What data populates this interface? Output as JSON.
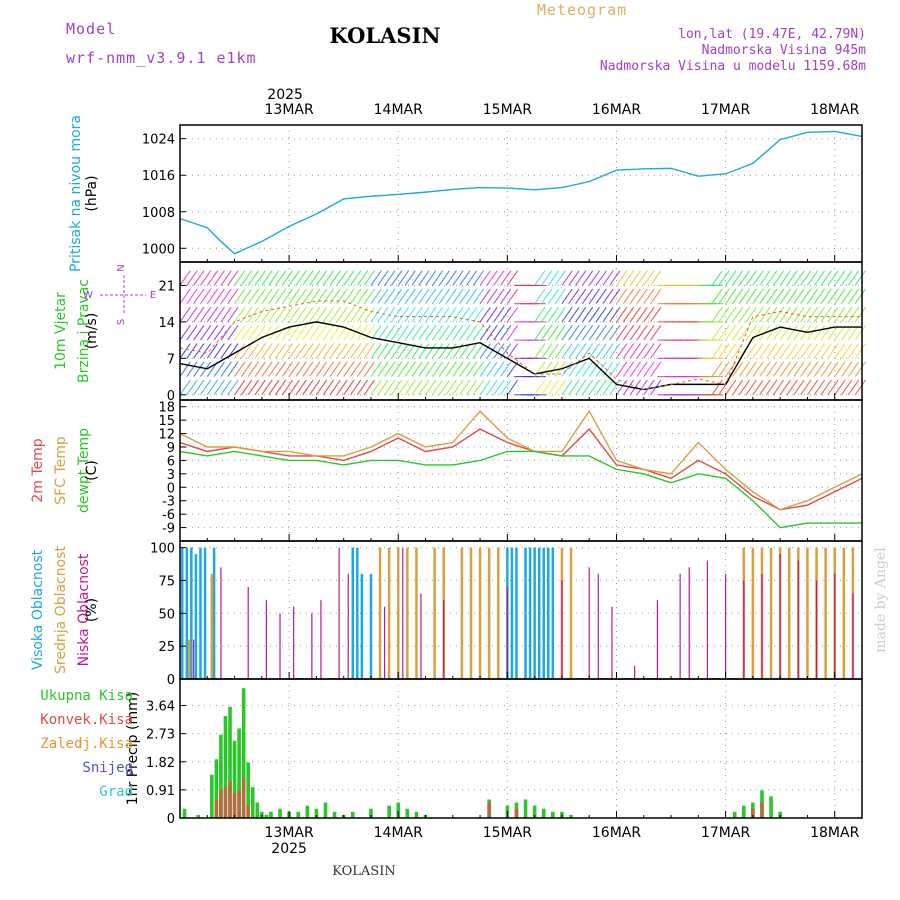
{
  "header": {
    "model_label": "Model",
    "model_name": "wrf-nmm_v3.9.1 e1km",
    "station": "KOLASIN",
    "product": "Meteogram",
    "coords": "lon,lat (19.47E, 42.79N)",
    "elevation": "Nadmorska Visina 945m",
    "model_elevation": "Nadmorska Visina u modelu 1159.68m",
    "footer_station": "KOLASIN",
    "credit": "made by Angel"
  },
  "colors": {
    "pressure": "#1ba8e8",
    "temp2m": "#e84848",
    "sfc": "#d8a040",
    "dewpt": "#28c828",
    "high_cloud": "#1ba8e8",
    "mid_cloud": "#d8a040",
    "low_cloud": "#c01890",
    "precip": "#28c828",
    "precip_conv": "#b86a40"
  },
  "chart_data": [
    {
      "type": "line",
      "panel": "pressure",
      "ylabel_lines": [
        "Pritisak na nivou mora",
        "(hPa)"
      ],
      "yticks": [
        "1000",
        "1008",
        "1016",
        "1024"
      ],
      "ylim": [
        997,
        1027
      ],
      "x_dates": [
        "13MAR",
        "14MAR",
        "15MAR",
        "16MAR",
        "17MAR",
        "18MAR"
      ],
      "year": "2025",
      "x_hours": [
        -12,
        -6,
        -3,
        0,
        6,
        12,
        18,
        24,
        30,
        36,
        42,
        48,
        54,
        60,
        66,
        72,
        78,
        84,
        90,
        96,
        102,
        108,
        114,
        120,
        126,
        132,
        138
      ],
      "series": [
        {
          "name": "",
          "values": [
            1006.5,
            1004.5,
            1001.5,
            998.8,
            1001.5,
            1004.8,
            1007.5,
            1010.8,
            1011.4,
            1011.8,
            1012.3,
            1012.9,
            1013.3,
            1013.2,
            1012.8,
            1013.3,
            1014.6,
            1017.1,
            1017.4,
            1017.5,
            1015.8,
            1016.3,
            1018.6,
            1023.8,
            1025.4,
            1025.6,
            1024.5
          ]
        }
      ]
    },
    {
      "type": "line",
      "panel": "wind",
      "ylabel_lines": [
        "10m Vjetar",
        "Brzina i Pravac",
        "(m/s)"
      ],
      "compass": {
        "w": "W",
        "e": "E",
        "n": "N",
        "s": "S"
      },
      "yticks": [
        "0",
        "7",
        "14",
        "21"
      ],
      "ylim": [
        -1,
        25.5
      ],
      "x_hours": [
        -12,
        -6,
        0,
        6,
        12,
        18,
        24,
        30,
        36,
        42,
        48,
        54,
        60,
        66,
        72,
        78,
        84,
        90,
        96,
        102,
        108,
        114,
        120,
        126,
        132,
        138
      ],
      "series": [
        {
          "name": "",
          "values": [
            6,
            5,
            8,
            11,
            13,
            14,
            13,
            11,
            10,
            9,
            9,
            10,
            7,
            4,
            5,
            7,
            2,
            1,
            2,
            2,
            2,
            11,
            13,
            12,
            13,
            13
          ]
        },
        {
          "name": "",
          "values": [
            9,
            8,
            14,
            16,
            17,
            18,
            18,
            16,
            15,
            15,
            15,
            14,
            8,
            4,
            4,
            8,
            3,
            1,
            2,
            3,
            2,
            15,
            16,
            15,
            15,
            15
          ]
        }
      ]
    },
    {
      "type": "line",
      "panel": "temperature",
      "ylabel_lines": [
        "2m Temp",
        "SFC Temp",
        "dewpt Temp",
        "(C)"
      ],
      "yticks": [
        "-9",
        "-6",
        "-3",
        "0",
        "3",
        "6",
        "9",
        "12",
        "15",
        "18"
      ],
      "ylim": [
        -12,
        19.5
      ],
      "x_hours": [
        -12,
        -6,
        0,
        6,
        12,
        18,
        24,
        30,
        36,
        42,
        48,
        54,
        60,
        66,
        72,
        78,
        84,
        90,
        96,
        102,
        108,
        114,
        120,
        126,
        132,
        138
      ],
      "series": [
        {
          "name": "2m Temp",
          "values": [
            10,
            8,
            9,
            8,
            7,
            7,
            6,
            8,
            11,
            8,
            9,
            13,
            10,
            8,
            7,
            13,
            5,
            4,
            2,
            6,
            3,
            -2,
            -5,
            -4,
            -1,
            2
          ]
        },
        {
          "name": "SFC Temp",
          "values": [
            12,
            9,
            9,
            8,
            8,
            7,
            7,
            9,
            12,
            9,
            10,
            17,
            11,
            8,
            8,
            17,
            6,
            4,
            3,
            10,
            4,
            -1,
            -5,
            -3,
            0,
            3
          ]
        },
        {
          "name": "dewpt Temp",
          "values": [
            8,
            7,
            8,
            7,
            6,
            6,
            5,
            6,
            6,
            5,
            5,
            6,
            8,
            8,
            7,
            7,
            4,
            3,
            1,
            3,
            2,
            -3,
            -9,
            -8,
            -8,
            -8
          ]
        }
      ]
    },
    {
      "type": "bar",
      "panel": "clouds",
      "ylabel_lines": [
        "Visoka Oblacnost",
        "Srednja Oblacnost",
        "Niska Oblacnost",
        "(%)"
      ],
      "yticks": [
        "0",
        "25",
        "50",
        "75",
        "100"
      ],
      "ylim": [
        0,
        105
      ],
      "series": [
        {
          "name": "Visoka Oblacnost",
          "x_hours": [
            -11.5,
            -10.5,
            -9.5,
            -8.5,
            -7.5,
            -6.5,
            -4.5,
            26,
            27,
            28,
            30,
            60,
            61,
            62,
            64,
            65,
            66,
            67,
            68,
            69,
            70
          ],
          "values": [
            100,
            100,
            100,
            95,
            100,
            100,
            100,
            100,
            100,
            80,
            80,
            100,
            100,
            100,
            100,
            100,
            100,
            100,
            100,
            100,
            100
          ]
        },
        {
          "name": "Srednja Oblacnost",
          "x_hours": [
            -10,
            -5,
            32,
            34,
            36,
            38,
            40,
            44,
            46,
            50,
            52,
            54,
            56,
            58,
            72,
            74,
            112,
            114,
            116,
            118,
            120,
            122,
            124,
            126,
            128,
            130,
            132,
            134,
            136
          ],
          "values": [
            30,
            80,
            100,
            100,
            100,
            100,
            100,
            100,
            100,
            100,
            100,
            100,
            100,
            100,
            100,
            100,
            100,
            100,
            100,
            100,
            100,
            100,
            100,
            100,
            100,
            100,
            100,
            100,
            100
          ]
        },
        {
          "name": "Niska Oblacnost",
          "x_hours": [
            -12,
            -9,
            -3,
            3,
            7,
            10,
            13,
            17,
            19,
            23,
            25,
            33,
            37,
            41,
            46,
            60,
            72,
            78,
            80,
            83,
            88,
            93,
            98,
            100,
            104,
            108,
            112,
            116,
            120,
            124,
            128,
            132,
            136
          ],
          "values": [
            40,
            30,
            85,
            70,
            60,
            50,
            55,
            50,
            60,
            100,
            80,
            55,
            100,
            65,
            60,
            70,
            75,
            85,
            80,
            55,
            10,
            60,
            80,
            85,
            90,
            80,
            75,
            80,
            95,
            90,
            75,
            80,
            65
          ]
        }
      ]
    },
    {
      "type": "bar",
      "panel": "precipitation",
      "ylabel_lines": [
        "1hr Precip (mm)"
      ],
      "legend": [
        "Ukupna Kisa",
        "Konvek.Kisa",
        "Zaledj.Kisa",
        "Snijeg",
        "Grad"
      ],
      "legend_colors": [
        "#28c828",
        "#e84848",
        "#f09030",
        "#5050e0",
        "#30c8c8"
      ],
      "yticks": [
        "0",
        "0.91",
        "1.82",
        "2.73",
        "3.64"
      ],
      "ylim": [
        0,
        4.5
      ],
      "series": [
        {
          "name": "Ukupna Kisa",
          "x_hours": [
            -11,
            -8,
            -5,
            -4,
            -3,
            -2,
            -1,
            0,
            1,
            2,
            3,
            4,
            5,
            6,
            7,
            8,
            10,
            12,
            14,
            16,
            18,
            20,
            22,
            24,
            26,
            30,
            34,
            36,
            38,
            40,
            42,
            56,
            60,
            62,
            64,
            66,
            68,
            70,
            72,
            74,
            110,
            112,
            114,
            116,
            118,
            120
          ],
          "values": [
            0.3,
            0.1,
            1.4,
            1.9,
            2.7,
            3.3,
            3.6,
            2.5,
            2.9,
            4.2,
            1.8,
            1.0,
            0.5,
            0.2,
            0.1,
            0.2,
            0.3,
            0.2,
            0.2,
            0.4,
            0.3,
            0.5,
            0.2,
            0.1,
            0.2,
            0.3,
            0.4,
            0.5,
            0.3,
            0.2,
            0.1,
            0.6,
            0.4,
            0.5,
            0.6,
            0.4,
            0.3,
            0.2,
            0.2,
            0.1,
            0.2,
            0.4,
            0.5,
            0.9,
            0.7,
            0.2
          ]
        },
        {
          "name": "Konvek.Kisa",
          "x_hours": [
            -4,
            -3,
            -2,
            -1,
            0,
            1,
            2,
            3,
            56,
            62,
            114,
            116
          ],
          "values": [
            0.6,
            0.9,
            1.0,
            1.2,
            0.8,
            0.9,
            1.3,
            0.4,
            0.5,
            0.3,
            0.3,
            0.5
          ]
        }
      ]
    }
  ]
}
